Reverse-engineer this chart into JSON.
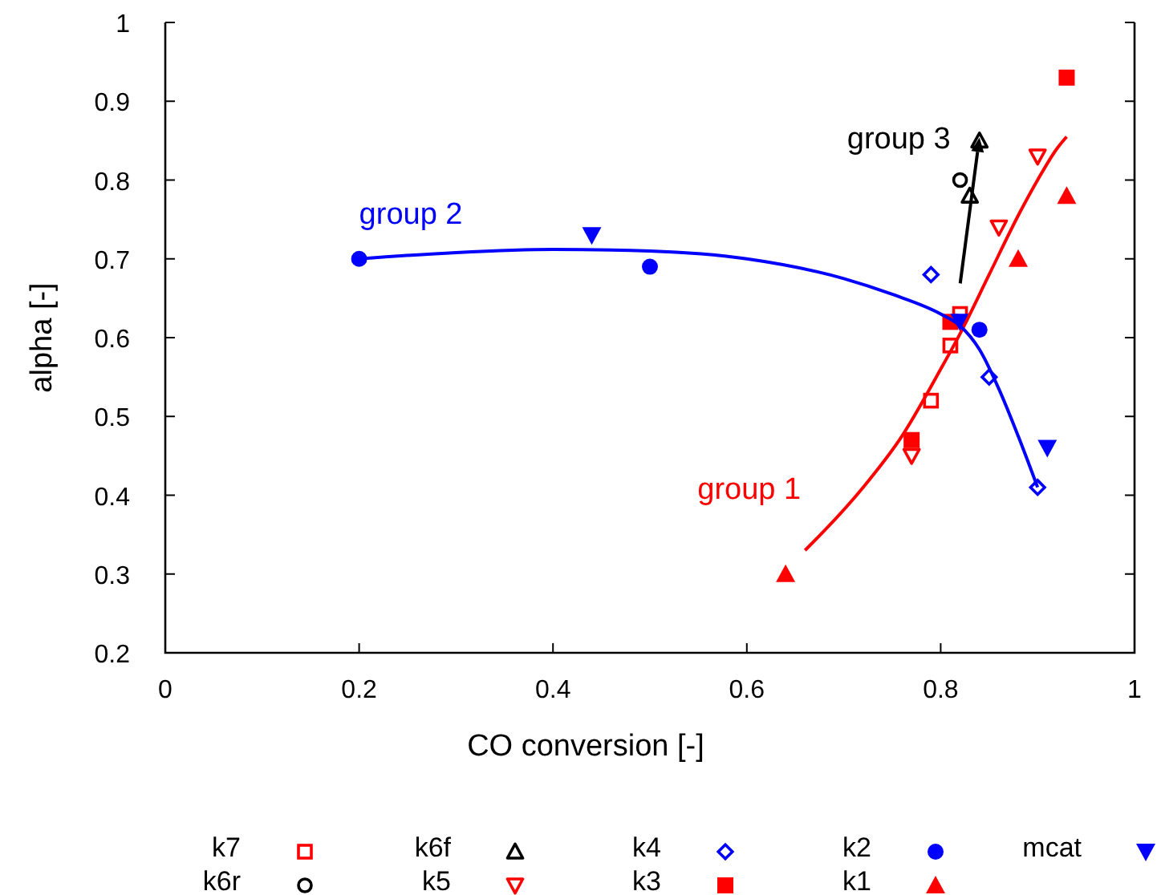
{
  "chart_data": {
    "type": "scatter",
    "xlabel": "CO conversion [-]",
    "ylabel": "alpha [-]",
    "xlim": [
      0,
      1
    ],
    "ylim": [
      0.2,
      1
    ],
    "xticks": [
      0,
      0.2,
      0.4,
      0.6,
      0.8,
      1
    ],
    "yticks": [
      0.2,
      0.3,
      0.4,
      0.5,
      0.6,
      0.7,
      0.8,
      0.9,
      1
    ],
    "grid": false,
    "legend": "bottom",
    "series": [
      {
        "name": "k7",
        "color": "#ff0000",
        "marker": "square-open",
        "x": [
          0.82,
          0.81,
          0.79
        ],
        "values": [
          0.63,
          0.59,
          0.52
        ]
      },
      {
        "name": "k6r",
        "color": "#000000",
        "marker": "circle-open",
        "x": [
          0.82
        ],
        "values": [
          0.8
        ]
      },
      {
        "name": "k6f",
        "color": "#000000",
        "marker": "triangle-open",
        "x": [
          0.84,
          0.83
        ],
        "values": [
          0.85,
          0.78
        ]
      },
      {
        "name": "k5",
        "color": "#ff0000",
        "marker": "triangle-down-open",
        "x": [
          0.77,
          0.86,
          0.9
        ],
        "values": [
          0.45,
          0.74,
          0.83
        ]
      },
      {
        "name": "k4",
        "color": "#0000ff",
        "marker": "diamond-open",
        "x": [
          0.79,
          0.85,
          0.9
        ],
        "values": [
          0.68,
          0.55,
          0.41
        ]
      },
      {
        "name": "k3",
        "color": "#ff0000",
        "marker": "square",
        "x": [
          0.77,
          0.81,
          0.93
        ],
        "values": [
          0.47,
          0.62,
          0.93
        ]
      },
      {
        "name": "k2",
        "color": "#0000ff",
        "marker": "circle",
        "x": [
          0.2,
          0.5,
          0.84
        ],
        "values": [
          0.7,
          0.69,
          0.61
        ]
      },
      {
        "name": "k1",
        "color": "#ff0000",
        "marker": "triangle",
        "x": [
          0.64,
          0.88,
          0.93
        ],
        "values": [
          0.3,
          0.7,
          0.78
        ]
      },
      {
        "name": "mcat",
        "color": "#0000ff",
        "marker": "triangle-down",
        "x": [
          0.44,
          0.82,
          0.91
        ],
        "values": [
          0.73,
          0.62,
          0.46
        ]
      },
      {
        "type": "line",
        "color": "#ff0000",
        "marker": "none",
        "x": [
          0.66,
          0.68,
          0.72,
          0.76,
          0.8,
          0.82,
          0.85,
          0.88,
          0.9,
          0.92,
          0.93
        ],
        "values": [
          0.33,
          0.355,
          0.41,
          0.475,
          0.56,
          0.605,
          0.68,
          0.755,
          0.8,
          0.84,
          0.855
        ]
      },
      {
        "type": "line",
        "color": "#0000ff",
        "marker": "none",
        "x": [
          0.2,
          0.3,
          0.4,
          0.5,
          0.6,
          0.7,
          0.75,
          0.8,
          0.82,
          0.84,
          0.86,
          0.88,
          0.9
        ],
        "values": [
          0.7,
          0.708,
          0.712,
          0.71,
          0.7,
          0.675,
          0.655,
          0.63,
          0.615,
          0.585,
          0.535,
          0.475,
          0.41
        ]
      }
    ],
    "annotations": [
      "group 1",
      "group 2",
      "group 3"
    ]
  }
}
